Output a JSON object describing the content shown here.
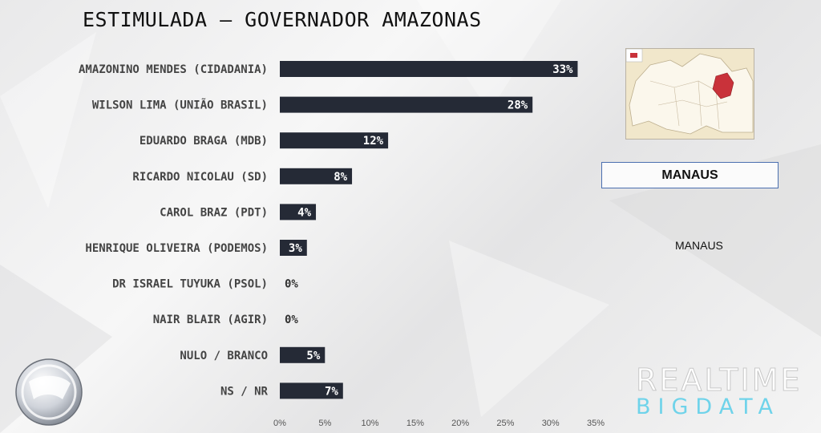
{
  "title": "ESTIMULADA – GOVERNADOR AMAZONAS",
  "chart_data": {
    "type": "bar",
    "orientation": "horizontal",
    "categories": [
      "AMAZONINO MENDES (CIDADANIA)",
      "WILSON LIMA (UNIÃO BRASIL)",
      "EDUARDO BRAGA (MDB)",
      "RICARDO NICOLAU (SD)",
      "CAROL BRAZ (PDT)",
      "HENRIQUE OLIVEIRA (PODEMOS)",
      "DR ISRAEL TUYUKA (PSOL)",
      "NAIR BLAIR (AGIR)",
      "NULO / BRANCO",
      "NS / NR"
    ],
    "values": [
      33,
      28,
      12,
      8,
      4,
      3,
      0,
      0,
      5,
      7
    ],
    "value_labels": [
      "33%",
      "28%",
      "12%",
      "8%",
      "4%",
      "3%",
      "0%",
      "0%",
      "5%",
      "7%"
    ],
    "xlim": [
      0,
      35
    ],
    "xticks": [
      "0%",
      "5%",
      "10%",
      "15%",
      "20%",
      "25%",
      "30%",
      "35%"
    ],
    "bar_color": "#252a36",
    "label_color": "#ffffff",
    "grid": false
  },
  "region": {
    "box_label": "MANAUS",
    "caption": "MANAUS",
    "highlight_color": "#c9323a"
  },
  "branding": {
    "brand_top": "REALTIME",
    "brand_bottom": "BIGDATA",
    "logo_icon": "record-tv-logo-icon",
    "accent_color": "#6fd3ea"
  }
}
